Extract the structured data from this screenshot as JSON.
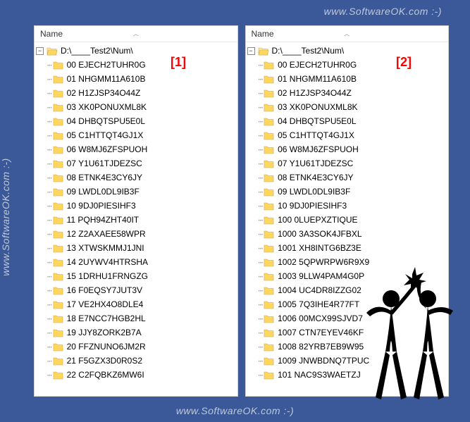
{
  "watermarks": {
    "top": "www.SoftwareOK.com :-)",
    "bottom": "www.SoftwareOK.com :-)",
    "left": "www.SoftwareOK.com :-)"
  },
  "colors": {
    "background": "#3b5998",
    "panel_bg": "#ffffff",
    "folder_yellow": "#ffd75e",
    "folder_open": "#ffe9a8",
    "marker_red": "#ff0000",
    "watermark": "#bdc8da"
  },
  "header_label": "Name",
  "root_path": "D:\\____Test2\\Num\\",
  "markers": {
    "left": "[1]",
    "right": "[2]"
  },
  "panels": {
    "left": {
      "items": [
        "00 EJECH2TUHR0G",
        "01 NHGMM11A610B",
        "02 H1ZJSP34O44Z",
        "03 XK0PONUXML8K",
        "04 DHBQTSPU5E0L",
        "05 C1HTTQT4GJ1X",
        "06 W8MJ6ZFSPUOH",
        "07 Y1U61TJDEZSC",
        "08 ETNK4E3CY6JY",
        "09 LWDL0DL9IB3F",
        "10 9DJ0PIESIHF3",
        "11 PQH94ZHT40IT",
        "12 Z2AXAEE58WPR",
        "13 XTWSKMMJ1JNI",
        "14 2UYWV4HTRSHA",
        "15 1DRHU1FRNGZG",
        "16 F0EQSY7JUT3V",
        "17 VE2HX4O8DLE4",
        "18 E7NCC7HGB2HL",
        "19 JJY8ZORK2B7A",
        "20 FFZNUNO6JM2R",
        "21 F5GZX3D0R0S2",
        "22 C2FQBKZ6MW6I"
      ]
    },
    "right": {
      "items": [
        "00 EJECH2TUHR0G",
        "01 NHGMM11A610B",
        "02 H1ZJSP34O44Z",
        "03 XK0PONUXML8K",
        "04 DHBQTSPU5E0L",
        "05 C1HTTQT4GJ1X",
        "06 W8MJ6ZFSPUOH",
        "07 Y1U61TJDEZSC",
        "08 ETNK4E3CY6JY",
        "09 LWDL0DL9IB3F",
        "10 9DJ0PIESIHF3",
        "100 0LUEPXZTIQUE",
        "1000 3A3SOK4JFBXL",
        "1001 XH8INTG6BZ3E",
        "1002 5QPWRPW6R9X9",
        "1003 9LLW4PAM4G0P",
        "1004 UC4DR8IZZG02",
        "1005 7Q3IHE4R77FT",
        "1006 00MCX99SJVD7",
        "1007 CTN7EYEV46KF",
        "1008 82YRB7EB9W95",
        "1009 JNWBDNQ7TPUC",
        "101 NAC9S3WAETZJ"
      ]
    }
  }
}
